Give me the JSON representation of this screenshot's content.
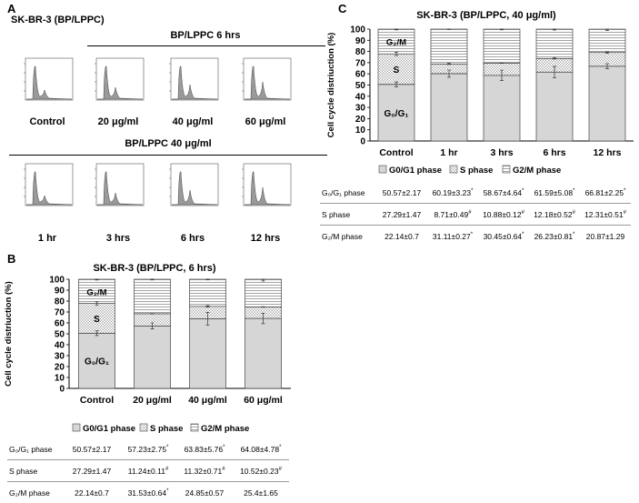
{
  "panelA": {
    "letter": "A",
    "title": "SK-BR-3 (BP/LPPC)",
    "row1_header": "BP/LPPC 6 hrs",
    "row2_header": "BP/LPPC 40 μg/ml",
    "row1_labels": [
      "Control",
      "20 μg/ml",
      "40 μg/ml",
      "60 μg/ml"
    ],
    "row2_labels": [
      "1 hr",
      "3 hrs",
      "6 hrs",
      "12 hrs"
    ]
  },
  "panelB": {
    "letter": "B",
    "table": {
      "columns": [
        "Control",
        "20 μg/ml",
        "40 μg/ml",
        "60 μg/ml"
      ],
      "rows": [
        {
          "label": "G₀/G₁ phase",
          "values": [
            "50.57±2.17",
            "57.23±2.75*",
            "63.83±5.76*",
            "64.08±4.78*"
          ]
        },
        {
          "label": "S phase",
          "values": [
            "27.29±1.47",
            "11.24±0.11#",
            "11.32±0.71#",
            "10.52±0.23#"
          ]
        },
        {
          "label": "G₂/M phase",
          "values": [
            "22.14±0.7",
            "31.53±0.64*",
            "24.85±0.57",
            "25.4±1.65"
          ]
        }
      ]
    }
  },
  "panelC": {
    "letter": "C",
    "table": {
      "columns": [
        "Control",
        "1 hr",
        "3 hrs",
        "6 hrs",
        "12 hrs"
      ],
      "rows": [
        {
          "label": "G₀/G₁ phase",
          "values": [
            "50.57±2.17",
            "60.19±3.23*",
            "58.67±4.64*",
            "61.59±5.08*",
            "66.81±2.25*"
          ]
        },
        {
          "label": "S phase",
          "values": [
            "27.29±1.47",
            "8.71±0.49#",
            "10.88±0.12#",
            "12.18±0.52#",
            "12.31±0.51#"
          ]
        },
        {
          "label": "G₂/M phase",
          "values": [
            "22.14±0.7",
            "31.11±0.27*",
            "30.45±0.64*",
            "26.23±0.81*",
            "20.87±1.29"
          ]
        }
      ]
    }
  },
  "chart_data": [
    {
      "id": "B",
      "type": "bar",
      "stacked": true,
      "title": "SK-BR-3 (BP/LPPC, 6 hrs)",
      "ylabel": "Cell cycle distriuction (%)",
      "xlabel": "",
      "ylim": [
        0,
        100
      ],
      "yticks": [
        0,
        10,
        20,
        30,
        40,
        50,
        60,
        70,
        80,
        90,
        100
      ],
      "categories": [
        "Control",
        "20 μg/ml",
        "40 μg/ml",
        "60 μg/ml"
      ],
      "series": [
        {
          "name": "G0/G1 phase",
          "values": [
            50.57,
            57.23,
            63.83,
            64.08
          ],
          "errors": [
            2.17,
            2.75,
            5.76,
            4.78
          ]
        },
        {
          "name": "S phase",
          "values": [
            27.29,
            11.24,
            11.32,
            10.52
          ],
          "errors": [
            1.47,
            0.11,
            0.71,
            0.23
          ]
        },
        {
          "name": "G2/M phase",
          "values": [
            22.14,
            31.53,
            24.85,
            25.4
          ],
          "errors": [
            0.7,
            0.64,
            0.57,
            1.65
          ]
        }
      ],
      "segment_labels": {
        "g0g1": "G₀/G₁",
        "s": "S",
        "g2m": "G₂/M"
      },
      "legend": [
        "G0/G1 phase",
        "S phase",
        "G2/M phase"
      ],
      "legend_position": "bottom"
    },
    {
      "id": "C",
      "type": "bar",
      "stacked": true,
      "title": "SK-BR-3 (BP/LPPC, 40 μg/ml)",
      "ylabel": "Cell cycle distriuction (%)",
      "xlabel": "",
      "ylim": [
        0,
        100
      ],
      "yticks": [
        0,
        10,
        20,
        30,
        40,
        50,
        60,
        70,
        80,
        90,
        100
      ],
      "categories": [
        "Control",
        "1 hr",
        "3 hrs",
        "6 hrs",
        "12 hrs"
      ],
      "series": [
        {
          "name": "G0/G1 phase",
          "values": [
            50.57,
            60.19,
            58.67,
            61.59,
            66.81
          ],
          "errors": [
            2.17,
            3.23,
            4.64,
            5.08,
            2.25
          ]
        },
        {
          "name": "S phase",
          "values": [
            27.29,
            8.71,
            10.88,
            12.18,
            12.31
          ],
          "errors": [
            1.47,
            0.49,
            0.12,
            0.52,
            0.51
          ]
        },
        {
          "name": "G2/M phase",
          "values": [
            22.14,
            31.11,
            30.45,
            26.23,
            20.87
          ],
          "errors": [
            0.7,
            0.27,
            0.64,
            0.81,
            1.29
          ]
        }
      ],
      "segment_labels": {
        "g0g1": "G₀/G₁",
        "s": "S",
        "g2m": "G₂/M"
      },
      "legend": [
        "G0/G1 phase",
        "S phase",
        "G2/M phase"
      ],
      "legend_position": "bottom"
    }
  ]
}
